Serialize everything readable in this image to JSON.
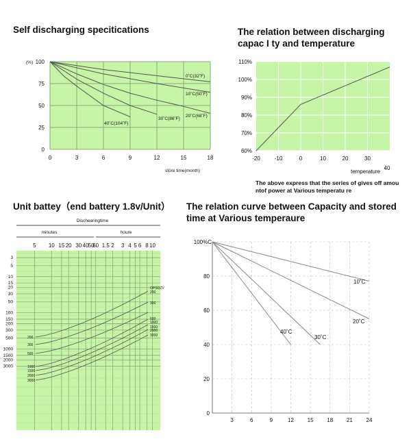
{
  "titles": {
    "self_discharge": "Self discharging specitications",
    "capacity_temp": "The relation between discharging\ncapac I ty and temperature",
    "unit_battery": "Unit battey（end battery 1.8v/Unit）",
    "capacity_stored": "The relation curve between Capacity and stored\ntime at Various temperaure"
  },
  "note": "The above express that the series of gives off amou\nntof power at Various temperatu re",
  "colors": {
    "plot_bg": "#c6f5a5",
    "grid": "#8aa87c",
    "curve": "#555555",
    "axis_gray": "#777777"
  },
  "chart_data": [
    {
      "id": "self_discharge",
      "type": "line",
      "title": "Self discharging specitications",
      "xlabel": "store time(month)",
      "ylabel": "(%)",
      "xlim": [
        0,
        18
      ],
      "ylim": [
        0,
        100
      ],
      "x_ticks": [
        "0",
        "3",
        "6",
        "9",
        "12",
        "15",
        "18"
      ],
      "y_ticks": [
        "100",
        "75",
        "50",
        "25",
        "0"
      ],
      "series": [
        {
          "name": "0˚C(32˚F)",
          "x": [
            0,
            6,
            12,
            18
          ],
          "y": [
            100,
            91,
            84,
            77
          ]
        },
        {
          "name": "10˚C(50˚F)",
          "x": [
            0,
            6,
            12,
            18
          ],
          "y": [
            100,
            86,
            75,
            65
          ]
        },
        {
          "name": "20˚C(68˚F)",
          "x": [
            0,
            3,
            6,
            9,
            12,
            15,
            18
          ],
          "y": [
            100,
            86,
            74,
            64,
            56,
            49,
            41
          ]
        },
        {
          "name": "30˚C(86˚F)",
          "x": [
            0,
            3,
            6,
            9,
            12
          ],
          "y": [
            100,
            80,
            64,
            50,
            40
          ]
        },
        {
          "name": "40˚C(104˚F)",
          "x": [
            0,
            1.5,
            3,
            6,
            9
          ],
          "y": [
            100,
            84,
            72,
            50,
            37
          ]
        }
      ]
    },
    {
      "id": "capacity_temp",
      "type": "line",
      "title": "The relation between discharging capac I ty and temperature",
      "xlabel": "temperature",
      "xlim": [
        -20,
        40
      ],
      "ylim": [
        60,
        110
      ],
      "x_ticks": [
        "-20",
        "-10",
        "0",
        "10",
        "20",
        "30",
        "40"
      ],
      "y_ticks": [
        "110%",
        "100%",
        "90%",
        "80%",
        "70%",
        "60%"
      ],
      "series": [
        {
          "x": [
            -20,
            0,
            40
          ],
          "y": [
            60,
            86,
            107
          ]
        }
      ]
    },
    {
      "id": "unit_battery",
      "type": "line",
      "title": "Unit battey（end battery 1.8v/Unit）",
      "xlabel": "Dischearingtime",
      "x_groups": [
        "minutes",
        "houre"
      ],
      "x_ticks": [
        "5",
        "10",
        "15",
        "20",
        "30",
        "40",
        "50",
        "60",
        "1.5",
        "2",
        "3",
        "4",
        "5",
        "6",
        "8",
        "10"
      ],
      "y_ticks": [
        "3",
        "5",
        "10",
        "15",
        "20",
        "30",
        "50",
        "100",
        "150",
        "200",
        "300",
        "500",
        "1000",
        "1500",
        "2000",
        "3000"
      ],
      "series": [
        {
          "name": "200",
          "x": [
            5,
            600
          ],
          "y": [
            200,
            30
          ]
        },
        {
          "name": "300",
          "x": [
            5,
            600
          ],
          "y": [
            300,
            40
          ]
        },
        {
          "name": "500",
          "x": [
            5,
            600
          ],
          "y": [
            500,
            70
          ]
        },
        {
          "name": "1000",
          "x": [
            5,
            600
          ],
          "y": [
            1000,
            130
          ]
        },
        {
          "name": "1500",
          "x": [
            5,
            600
          ],
          "y": [
            1500,
            200
          ]
        },
        {
          "name": "2000",
          "x": [
            5,
            600
          ],
          "y": [
            2000,
            250
          ]
        },
        {
          "name": "3000",
          "x": [
            5,
            600
          ],
          "y": [
            3000,
            400
          ]
        }
      ],
      "curve_labels": [
        "200",
        "300",
        "500",
        "1000",
        "1500",
        "2000",
        "3000"
      ],
      "end_labels": [
        "OPSOZV",
        "200",
        "300",
        "500",
        "1000",
        "1500",
        "2000",
        "3000"
      ]
    },
    {
      "id": "capacity_stored",
      "type": "line",
      "title": "The relation curve between Capacity and stored time at Various temperaure",
      "xlim": [
        0,
        24
      ],
      "ylim": [
        0,
        100
      ],
      "ylabel": "100%C",
      "x_ticks": [
        "0",
        "3",
        "6",
        "9",
        "12",
        "15",
        "18",
        "21",
        "24"
      ],
      "y_ticks": [
        "100%C",
        "80",
        "60",
        "40",
        "20",
        "0"
      ],
      "series": [
        {
          "name": "10˚C",
          "x": [
            0,
            24
          ],
          "y": [
            100,
            77
          ]
        },
        {
          "name": "20˚C",
          "x": [
            0,
            24
          ],
          "y": [
            100,
            55
          ]
        },
        {
          "name": "30˚C",
          "x": [
            0,
            16.5
          ],
          "y": [
            100,
            40
          ]
        },
        {
          "name": "40˚C",
          "x": [
            0,
            12
          ],
          "y": [
            100,
            40
          ]
        }
      ]
    }
  ]
}
